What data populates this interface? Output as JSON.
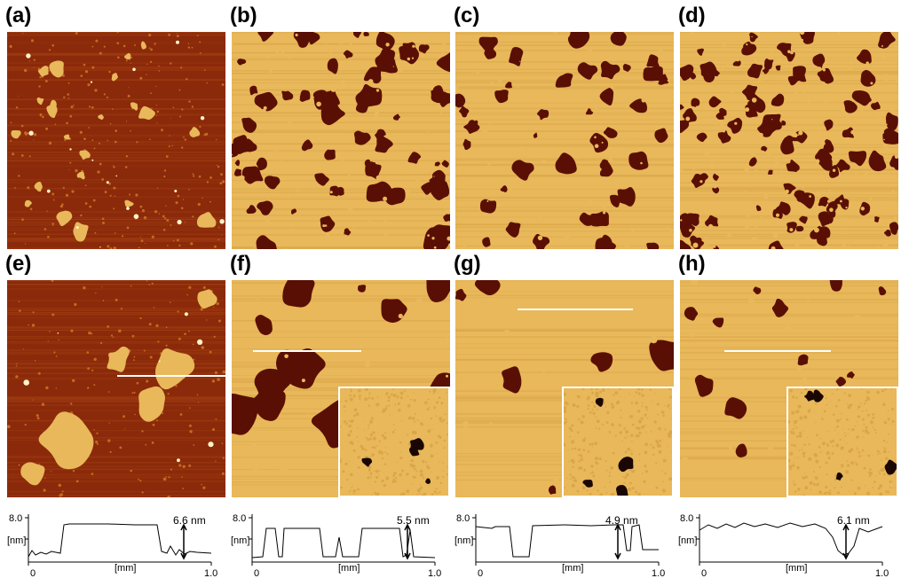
{
  "panels": [
    {
      "label": "(a)",
      "type": "islands-dark"
    },
    {
      "label": "(b)",
      "type": "holes-light"
    },
    {
      "label": "(c)",
      "type": "holes-light-sparse"
    },
    {
      "label": "(d)",
      "type": "holes-light-dense"
    },
    {
      "label": "(e)",
      "type": "islands-dark-zoom"
    },
    {
      "label": "(f)",
      "type": "holes-light-zoom"
    },
    {
      "label": "(g)",
      "type": "holes-light-zoom-sparse"
    },
    {
      "label": "(h)",
      "type": "holes-light-zoom-grainy"
    }
  ],
  "colors": {
    "substrate_dark": "#8a2a0a",
    "film_light": "#e8b85a",
    "film_highlight": "#fff3c8",
    "hole": "#5a0f05"
  },
  "profiles": [
    {
      "panel": "(e)",
      "ymax": "8.0",
      "yunit": "[nm]",
      "xunit": "[mm]",
      "x0": "0",
      "x1": "1.0",
      "step": "6.6 nm"
    },
    {
      "panel": "(f)",
      "ymax": "8.0",
      "yunit": "[nm]",
      "xunit": "[mm]",
      "x0": "0",
      "x1": "1.0",
      "step": "5.5 nm"
    },
    {
      "panel": "(g)",
      "ymax": "8.0",
      "yunit": "[nm]",
      "xunit": "[mm]",
      "x0": "0",
      "x1": "1.0",
      "step": "4.9 nm"
    },
    {
      "panel": "(h)",
      "ymax": "8.0",
      "yunit": "[nm]",
      "xunit": "[mm]",
      "x0": "0",
      "x1": "1.0",
      "step": "6.1 nm"
    }
  ]
}
